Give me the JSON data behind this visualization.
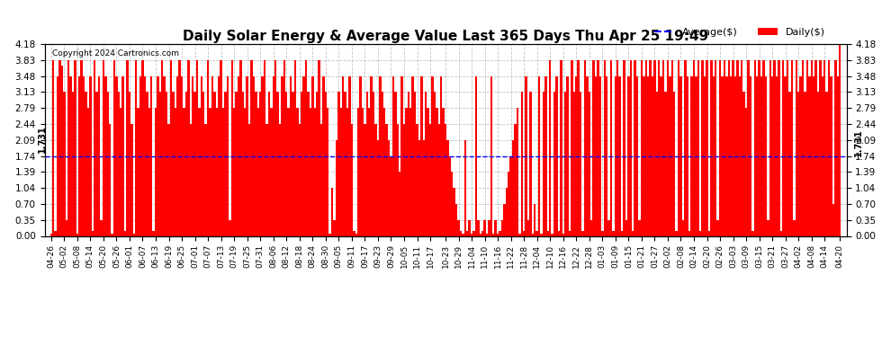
{
  "title": "Daily Solar Energy & Average Value Last 365 Days Thu Apr 25 19:49",
  "copyright": "Copyright 2024 Cartronics.com",
  "bar_color": "#ff0000",
  "avg_color": "#0000ff",
  "avg_value": 1.731,
  "ylim": [
    0,
    4.18
  ],
  "yticks": [
    0.0,
    0.35,
    0.7,
    1.04,
    1.39,
    1.74,
    2.09,
    2.44,
    2.79,
    3.13,
    3.48,
    3.83,
    4.18
  ],
  "title_fontsize": 11,
  "legend_avg_label": "Average($)",
  "legend_daily_label": "Daily($)",
  "avg_label_text": "1.731",
  "x_labels": [
    "04-26",
    "05-02",
    "05-08",
    "05-14",
    "05-20",
    "05-26",
    "06-01",
    "06-07",
    "06-13",
    "06-19",
    "06-25",
    "07-01",
    "07-07",
    "07-13",
    "07-19",
    "07-25",
    "07-31",
    "08-06",
    "08-12",
    "08-18",
    "08-24",
    "08-30",
    "09-05",
    "09-11",
    "09-17",
    "09-23",
    "09-29",
    "10-05",
    "10-11",
    "10-17",
    "10-23",
    "10-29",
    "11-04",
    "11-10",
    "11-16",
    "11-22",
    "11-28",
    "12-04",
    "12-10",
    "12-16",
    "12-22",
    "12-28",
    "01-03",
    "01-09",
    "01-15",
    "01-21",
    "01-27",
    "02-02",
    "02-08",
    "02-14",
    "02-20",
    "02-26",
    "03-03",
    "03-09",
    "03-15",
    "03-21",
    "03-27",
    "04-02",
    "04-08",
    "04-14",
    "04-20"
  ],
  "bar_values": [
    0.05,
    3.83,
    0.1,
    3.48,
    3.83,
    3.7,
    3.13,
    0.35,
    3.83,
    3.48,
    3.13,
    3.83,
    0.05,
    3.48,
    3.83,
    3.48,
    3.13,
    2.79,
    3.48,
    0.1,
    3.83,
    3.13,
    3.48,
    0.35,
    3.83,
    3.48,
    3.13,
    2.44,
    0.05,
    3.83,
    3.48,
    3.13,
    2.79,
    3.48,
    0.1,
    3.83,
    3.13,
    2.44,
    0.05,
    3.83,
    2.79,
    3.48,
    3.83,
    3.48,
    3.13,
    2.79,
    3.48,
    0.1,
    2.79,
    3.48,
    3.13,
    3.83,
    3.48,
    3.13,
    2.44,
    3.83,
    3.13,
    2.79,
    3.48,
    3.83,
    3.48,
    2.79,
    3.13,
    3.83,
    2.44,
    3.48,
    3.13,
    3.83,
    2.79,
    3.48,
    3.13,
    2.44,
    3.83,
    2.79,
    3.48,
    3.13,
    2.79,
    3.48,
    3.83,
    2.79,
    3.13,
    3.48,
    0.35,
    3.83,
    2.79,
    3.13,
    3.48,
    3.83,
    3.13,
    2.79,
    3.48,
    2.44,
    3.83,
    3.48,
    3.13,
    2.79,
    3.13,
    3.48,
    3.83,
    2.44,
    3.13,
    2.79,
    3.48,
    3.83,
    3.13,
    2.44,
    3.48,
    3.83,
    3.13,
    2.79,
    3.48,
    3.13,
    3.83,
    2.79,
    2.44,
    3.13,
    3.48,
    3.83,
    3.13,
    2.79,
    3.48,
    2.79,
    3.13,
    3.83,
    2.44,
    3.48,
    3.13,
    2.79,
    0.05,
    1.04,
    0.35,
    2.09,
    3.13,
    2.79,
    3.48,
    3.13,
    2.79,
    3.48,
    2.44,
    0.1,
    0.05,
    2.79,
    3.48,
    2.79,
    2.44,
    3.13,
    2.79,
    3.48,
    3.13,
    2.44,
    2.09,
    3.48,
    3.13,
    2.79,
    2.44,
    2.09,
    1.74,
    3.48,
    3.13,
    2.44,
    1.39,
    3.48,
    2.44,
    2.79,
    3.13,
    2.79,
    3.48,
    3.13,
    2.44,
    2.09,
    3.48,
    2.09,
    3.13,
    2.79,
    2.44,
    3.48,
    3.13,
    2.79,
    2.44,
    3.48,
    2.79,
    2.44,
    2.09,
    1.74,
    1.39,
    1.04,
    0.7,
    0.35,
    0.1,
    0.05,
    2.09,
    0.1,
    0.35,
    0.05,
    0.1,
    3.48,
    0.35,
    0.05,
    0.1,
    0.35,
    0.05,
    0.35,
    3.48,
    0.05,
    0.35,
    0.05,
    0.1,
    0.35,
    0.7,
    1.04,
    1.39,
    1.74,
    2.09,
    2.44,
    2.79,
    0.05,
    3.13,
    0.1,
    3.48,
    0.35,
    3.13,
    0.05,
    0.7,
    0.1,
    3.48,
    0.05,
    3.13,
    3.48,
    0.1,
    3.83,
    0.05,
    3.13,
    3.48,
    0.1,
    3.83,
    0.05,
    3.13,
    3.48,
    0.1,
    3.83,
    3.13,
    3.48,
    3.83,
    3.13,
    0.1,
    3.83,
    3.48,
    3.13,
    0.35,
    3.83,
    3.48,
    3.83,
    3.48,
    0.1,
    3.83,
    3.48,
    0.35,
    3.83,
    0.1,
    3.48,
    3.83,
    3.48,
    0.1,
    3.83,
    0.35,
    3.48,
    3.83,
    0.1,
    3.83,
    3.48,
    0.35,
    3.83,
    3.48,
    3.83,
    3.48,
    3.83,
    3.48,
    3.83,
    3.13,
    3.83,
    3.48,
    3.83,
    3.13,
    3.83,
    3.48,
    3.83,
    3.13,
    0.1,
    3.83,
    3.48,
    0.35,
    3.83,
    3.48,
    0.1,
    3.48,
    3.83,
    3.48,
    3.83,
    0.1,
    3.83,
    3.48,
    3.83,
    0.1,
    3.83,
    3.48,
    3.83,
    0.35,
    3.83,
    3.48,
    3.83,
    3.48,
    3.83,
    3.48,
    3.83,
    3.48,
    3.83,
    3.48,
    3.83,
    3.13,
    2.79,
    3.83,
    3.48,
    0.1,
    3.83,
    3.48,
    3.83,
    3.48,
    3.83,
    3.48,
    0.35,
    3.83,
    3.48,
    3.83,
    3.48,
    3.83,
    0.1,
    3.83,
    3.48,
    3.83,
    3.13,
    3.83,
    0.35,
    3.83,
    3.13,
    3.48,
    3.83,
    3.13,
    3.83,
    3.48,
    3.83,
    3.48,
    3.83,
    3.13,
    3.83,
    3.48,
    3.83,
    3.13,
    3.83,
    3.48,
    0.7,
    3.83,
    3.48,
    4.18
  ],
  "background_color": "#ffffff",
  "grid_color": "#aaaaaa"
}
